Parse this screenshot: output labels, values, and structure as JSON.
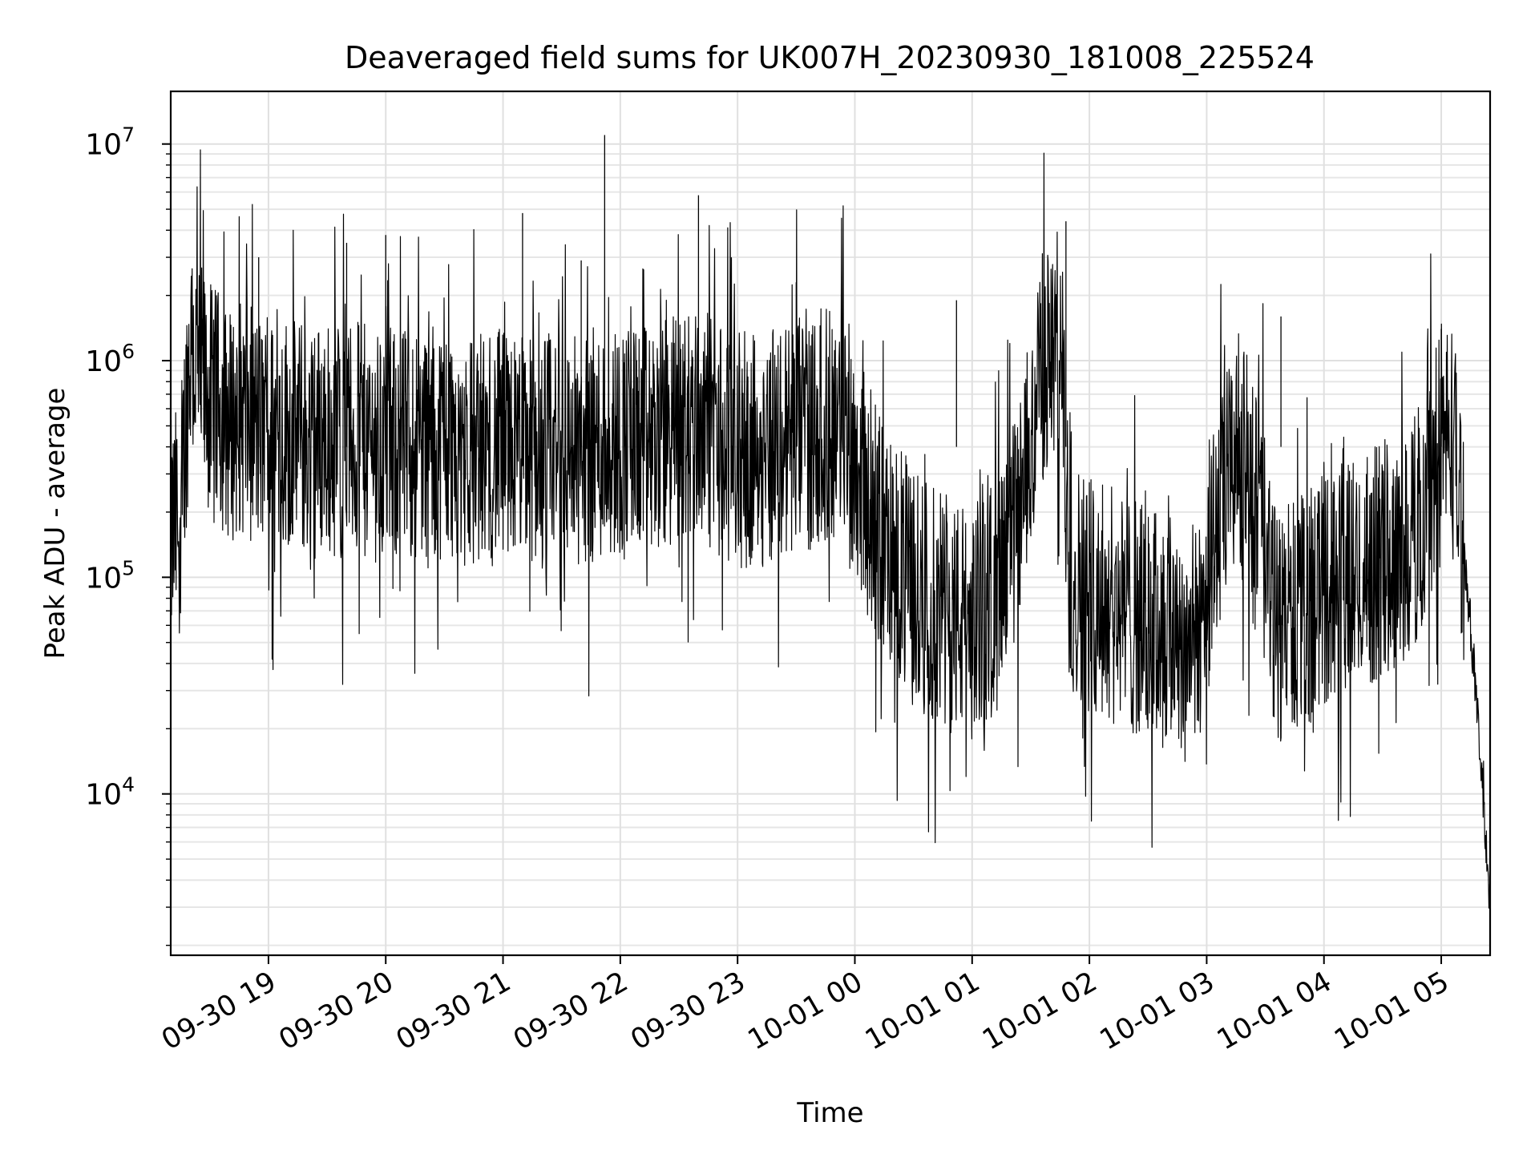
{
  "chart_data": {
    "type": "line",
    "title": "Deaveraged field sums for UK007H_20230930_181008_225524",
    "xlabel": "Time",
    "ylabel": "Peak ADU - average",
    "y_scale": "log",
    "grid": true,
    "grid_minor_y": true,
    "x_range": [
      "2023-09-30 18:10",
      "2023-10-01 05:25"
    ],
    "ylim": [
      1800,
      17500000
    ],
    "x_ticks": [
      {
        "t": "2023-09-30 19:00",
        "label": "09-30 19"
      },
      {
        "t": "2023-09-30 20:00",
        "label": "09-30 20"
      },
      {
        "t": "2023-09-30 21:00",
        "label": "09-30 21"
      },
      {
        "t": "2023-09-30 22:00",
        "label": "09-30 22"
      },
      {
        "t": "2023-09-30 23:00",
        "label": "09-30 23"
      },
      {
        "t": "2023-10-01 00:00",
        "label": "10-01 00"
      },
      {
        "t": "2023-10-01 01:00",
        "label": "10-01 01"
      },
      {
        "t": "2023-10-01 02:00",
        "label": "10-01 02"
      },
      {
        "t": "2023-10-01 03:00",
        "label": "10-01 03"
      },
      {
        "t": "2023-10-01 04:00",
        "label": "10-01 04"
      },
      {
        "t": "2023-10-01 05:00",
        "label": "10-01 05"
      }
    ],
    "y_ticks": [
      {
        "value": 10000,
        "base": "10",
        "exp": "4"
      },
      {
        "value": 100000,
        "base": "10",
        "exp": "5"
      },
      {
        "value": 1000000,
        "base": "10",
        "exp": "6"
      },
      {
        "value": 10000000,
        "base": "10",
        "exp": "7"
      }
    ],
    "series_color": "#000000",
    "series": [
      {
        "x": [
          "2023-09-30 18:10",
          "2023-09-30 18:15",
          "2023-09-30 18:20",
          "2023-09-30 18:25",
          "2023-09-30 18:30",
          "2023-09-30 18:35",
          "2023-09-30 18:40",
          "2023-09-30 18:45",
          "2023-09-30 18:50",
          "2023-09-30 18:55",
          "2023-09-30 19:00",
          "2023-09-30 19:10",
          "2023-09-30 19:20",
          "2023-09-30 19:30",
          "2023-09-30 19:40",
          "2023-09-30 19:50",
          "2023-09-30 20:00",
          "2023-09-30 20:15",
          "2023-09-30 20:30",
          "2023-09-30 20:45",
          "2023-09-30 21:00",
          "2023-09-30 21:15",
          "2023-09-30 21:30",
          "2023-09-30 21:45",
          "2023-09-30 21:52",
          "2023-09-30 22:00",
          "2023-09-30 22:15",
          "2023-09-30 22:30",
          "2023-09-30 22:40",
          "2023-09-30 22:50",
          "2023-09-30 23:00",
          "2023-09-30 23:15",
          "2023-09-30 23:30",
          "2023-09-30 23:45",
          "2023-09-30 23:55",
          "2023-10-01 00:05",
          "2023-10-01 00:15",
          "2023-10-01 00:30",
          "2023-10-01 00:45",
          "2023-10-01 01:00",
          "2023-10-01 01:15",
          "2023-10-01 01:25",
          "2023-10-01 01:35",
          "2023-10-01 01:45",
          "2023-10-01 01:50",
          "2023-10-01 02:00",
          "2023-10-01 02:15",
          "2023-10-01 02:30",
          "2023-10-01 02:45",
          "2023-10-01 02:55",
          "2023-10-01 03:00",
          "2023-10-01 03:15",
          "2023-10-01 03:25",
          "2023-10-01 03:35",
          "2023-10-01 03:50",
          "2023-10-01 04:00",
          "2023-10-01 04:15",
          "2023-10-01 04:30",
          "2023-10-01 04:45",
          "2023-10-01 05:00",
          "2023-10-01 05:05",
          "2023-10-01 05:10",
          "2023-10-01 05:15",
          "2023-10-01 05:20",
          "2023-10-01 05:25"
        ],
        "y": [
          150000,
          200000,
          1200000,
          800000,
          650000,
          600000,
          500000,
          550000,
          520000,
          480000,
          450000,
          480000,
          420000,
          450000,
          430000,
          420000,
          400000,
          420000,
          430000,
          380000,
          400000,
          390000,
          380000,
          400000,
          420000,
          430000,
          410000,
          500000,
          520000,
          450000,
          380000,
          400000,
          450000,
          500000,
          550000,
          250000,
          150000,
          90000,
          70000,
          60000,
          90000,
          200000,
          900000,
          1200000,
          100000,
          90000,
          70000,
          60000,
          55000,
          50000,
          100000,
          400000,
          250000,
          60000,
          70000,
          90000,
          100000,
          120000,
          150000,
          400000,
          500000,
          200000,
          60000,
          15000,
          3000
        ]
      }
    ]
  }
}
